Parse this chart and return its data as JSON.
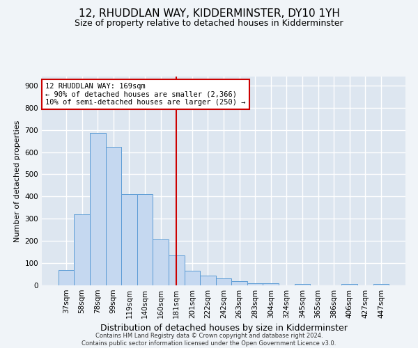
{
  "title": "12, RHUDDLAN WAY, KIDDERMINSTER, DY10 1YH",
  "subtitle": "Size of property relative to detached houses in Kidderminster",
  "xlabel": "Distribution of detached houses by size in Kidderminster",
  "ylabel": "Number of detached properties",
  "footer_line1": "Contains HM Land Registry data © Crown copyright and database right 2024.",
  "footer_line2": "Contains public sector information licensed under the Open Government Licence v3.0.",
  "categories": [
    "37sqm",
    "58sqm",
    "78sqm",
    "99sqm",
    "119sqm",
    "140sqm",
    "160sqm",
    "181sqm",
    "201sqm",
    "222sqm",
    "242sqm",
    "263sqm",
    "283sqm",
    "304sqm",
    "324sqm",
    "345sqm",
    "365sqm",
    "386sqm",
    "406sqm",
    "427sqm",
    "447sqm"
  ],
  "values": [
    70,
    320,
    685,
    625,
    410,
    410,
    207,
    135,
    65,
    45,
    30,
    20,
    10,
    8,
    0,
    5,
    0,
    0,
    5,
    0,
    5
  ],
  "bar_color": "#c5d8f0",
  "bar_edge_color": "#5b9bd5",
  "vline_x_index": 7,
  "vline_color": "#cc0000",
  "annotation_line1": "12 RHUDDLAN WAY: 169sqm",
  "annotation_line2": "← 90% of detached houses are smaller (2,366)",
  "annotation_line3": "10% of semi-detached houses are larger (250) →",
  "annotation_box_color": "#ffffff",
  "annotation_box_edge": "#cc0000",
  "ylim": [
    0,
    940
  ],
  "yticks": [
    0,
    100,
    200,
    300,
    400,
    500,
    600,
    700,
    800,
    900
  ],
  "background_color": "#dde6f0",
  "grid_color": "#ffffff",
  "title_fontsize": 11,
  "subtitle_fontsize": 9,
  "xlabel_fontsize": 9,
  "ylabel_fontsize": 8,
  "tick_fontsize": 7.5,
  "annotation_fontsize": 7.5,
  "footer_fontsize": 6
}
